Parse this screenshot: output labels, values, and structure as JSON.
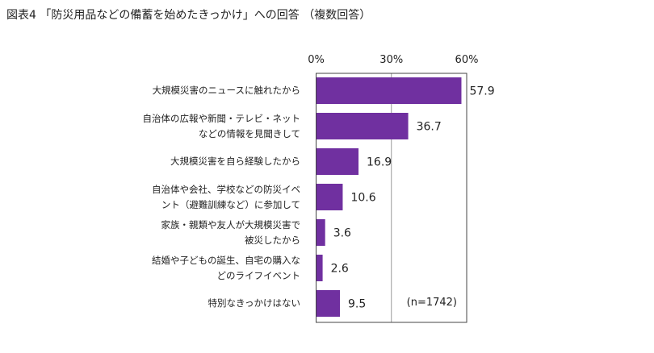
{
  "title": "図表4 「防災用品などの備蓄を始めたきっかけ」への回答 （複数回答）",
  "chart_data": {
    "type": "bar",
    "orientation": "horizontal",
    "categories": [
      "大規模災害のニュースに触れたから",
      "自治体の広報や新聞・テレビ・ネット\nなどの情報を見聞きして",
      "大規模災害を自ら経験したから",
      "自治体や会社、学校などの防災イベ\nント（避難訓練など）に参加して",
      "家族・親類や友人が大規模災害で\n被災したから",
      "結婚や子どもの誕生、自宅の購入な\nどのライフイベント",
      "特別なきっかけはない"
    ],
    "values": [
      57.9,
      36.7,
      16.9,
      10.6,
      3.6,
      2.6,
      9.5
    ],
    "value_labels": [
      "57.9",
      "36.7",
      "16.9",
      "10.6",
      "3.6",
      "2.6",
      "9.5"
    ],
    "xlim": [
      0,
      60
    ],
    "ticks": [
      0,
      30,
      60
    ],
    "tick_labels": [
      "0%",
      "30%",
      "60%"
    ],
    "axis_position": "top",
    "grid": true,
    "annotation": "(n=1742)",
    "bar_color": "#7030a0"
  }
}
